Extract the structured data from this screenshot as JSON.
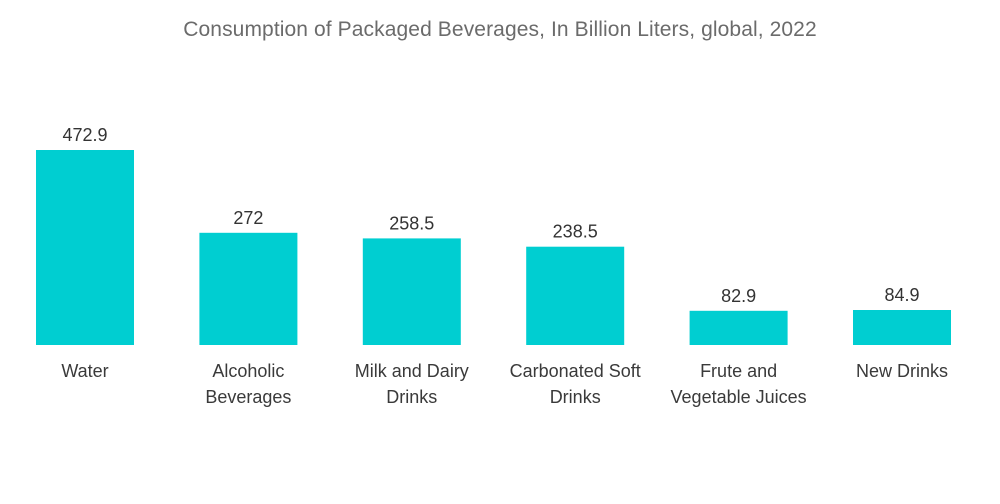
{
  "chart_data": {
    "type": "bar",
    "title": "Consumption of Packaged Beverages, In Billion Liters, global, 2022",
    "categories": [
      [
        "Water"
      ],
      [
        "Alcoholic",
        "Beverages"
      ],
      [
        "Milk and Dairy",
        "Drinks"
      ],
      [
        "Carbonated Soft",
        "Drinks"
      ],
      [
        "Frute and",
        "Vegetable Juices"
      ],
      [
        "New Drinks"
      ]
    ],
    "values": [
      472.9,
      272,
      258.5,
      238.5,
      82.9,
      84.9
    ],
    "value_labels": [
      "472.9",
      "272",
      "258.5",
      "238.5",
      "82.9",
      "84.9"
    ],
    "bar_color": "#00ced1",
    "ylim": [
      0,
      472.9
    ],
    "grid": false,
    "legend": "none"
  }
}
